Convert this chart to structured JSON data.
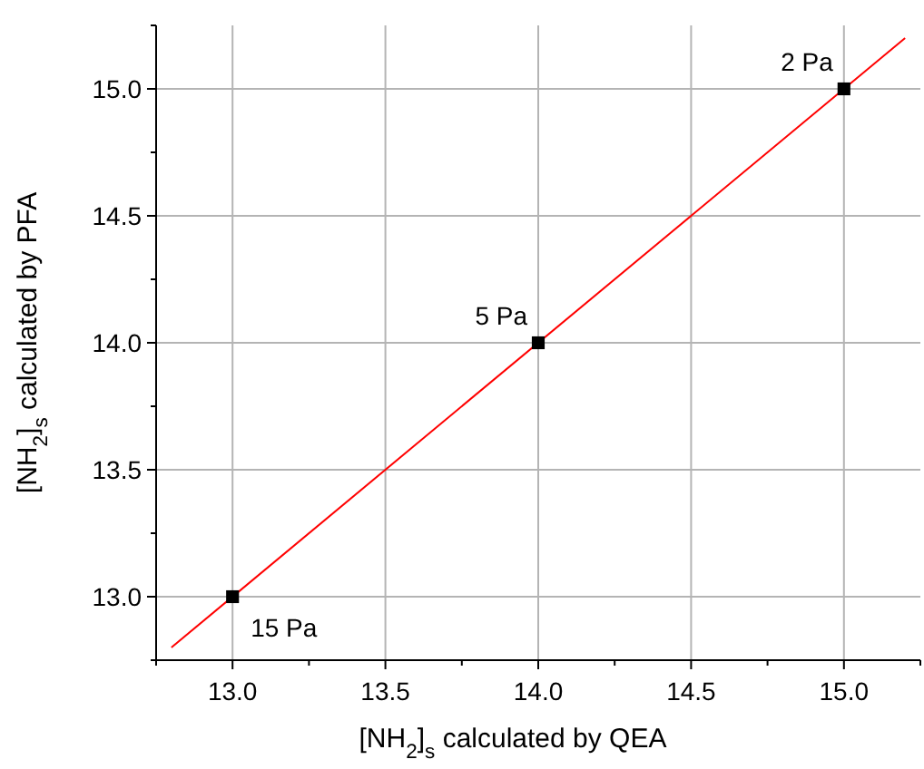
{
  "chart_data": {
    "type": "scatter",
    "xlabel": "[NH$_{2}$]$_{s}$ calculated by QEA",
    "ylabel": "[NH$_{2}$]$_{s}$ calculated by PFA",
    "xlim": [
      12.75,
      15.25
    ],
    "ylim": [
      12.75,
      15.25
    ],
    "xticks": [
      {
        "value": 12.75,
        "label": null
      },
      {
        "value": 13,
        "label": "13.0"
      },
      {
        "value": 13.25,
        "label": null
      },
      {
        "value": 13.5,
        "label": "13.5"
      },
      {
        "value": 13.75,
        "label": null
      },
      {
        "value": 14,
        "label": "14.0"
      },
      {
        "value": 14.25,
        "label": null
      },
      {
        "value": 14.5,
        "label": "14.5"
      },
      {
        "value": 14.75,
        "label": null
      },
      {
        "value": 15,
        "label": "15.0"
      },
      {
        "value": 15.25,
        "label": null
      }
    ],
    "yticks": [
      {
        "value": 12.75,
        "label": null
      },
      {
        "value": 13,
        "label": "13.0"
      },
      {
        "value": 13.25,
        "label": null
      },
      {
        "value": 13.5,
        "label": "13.5"
      },
      {
        "value": 13.75,
        "label": null
      },
      {
        "value": 14,
        "label": "14.0"
      },
      {
        "value": 14.25,
        "label": null
      },
      {
        "value": 14.5,
        "label": "14.5"
      },
      {
        "value": 14.75,
        "label": null
      },
      {
        "value": 15,
        "label": "15.0"
      },
      {
        "value": 15.25,
        "label": null
      }
    ],
    "grid": true,
    "series": [
      {
        "type": "line",
        "color": "#ff0000",
        "marker": "none",
        "x": [
          12.8,
          15.2
        ],
        "values": [
          12.8,
          15.2
        ]
      },
      {
        "color": "#000000",
        "marker": "square",
        "x": [
          13,
          14,
          15
        ],
        "values": [
          13,
          14,
          15
        ]
      }
    ],
    "annotations": [
      {
        "text": "15 Pa",
        "x": 13,
        "y": 13
      },
      {
        "text": "5 Pa",
        "x": 14,
        "y": 14
      },
      {
        "text": "2 Pa",
        "x": 15,
        "y": 15
      }
    ]
  }
}
